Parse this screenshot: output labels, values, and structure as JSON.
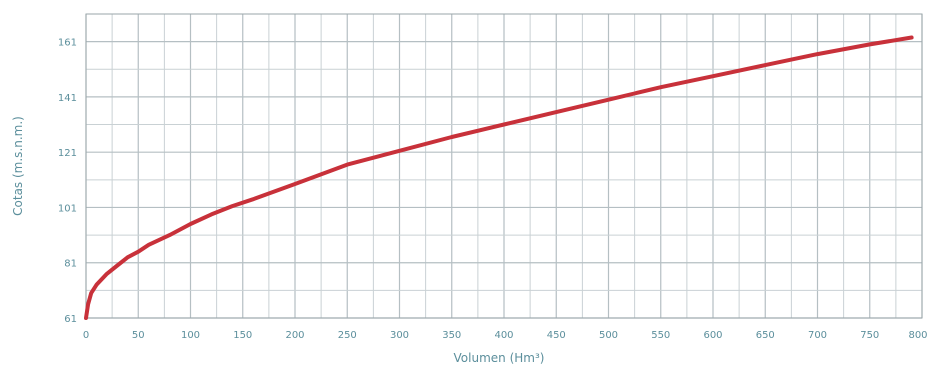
{
  "chart_data": {
    "type": "line",
    "title": "",
    "xlabel": "Volumen (Hm³)",
    "ylabel": "Cotas (m.s.n.m.)",
    "xlim": [
      0,
      800
    ],
    "ylim": [
      61,
      171
    ],
    "x_ticks": [
      0,
      50,
      100,
      150,
      200,
      250,
      300,
      350,
      400,
      450,
      500,
      550,
      600,
      650,
      700,
      750,
      800
    ],
    "y_ticks": [
      61,
      81,
      101,
      121,
      141,
      161
    ],
    "grid": true,
    "legend": "none",
    "series": [
      {
        "color": "#c8313a",
        "x": [
          0,
          2,
          5,
          10,
          20,
          30,
          40,
          50,
          60,
          80,
          100,
          120,
          140,
          160,
          200,
          250,
          300,
          350,
          400,
          450,
          500,
          550,
          600,
          650,
          700,
          750,
          790
        ],
        "y": [
          61,
          66,
          70,
          73,
          77,
          80,
          83,
          85,
          87.5,
          91,
          95,
          98.5,
          101.5,
          104,
          109.5,
          116.5,
          121.5,
          126.5,
          131,
          135.5,
          140,
          144.5,
          148.5,
          152.5,
          156.5,
          160,
          162.5
        ]
      }
    ]
  }
}
